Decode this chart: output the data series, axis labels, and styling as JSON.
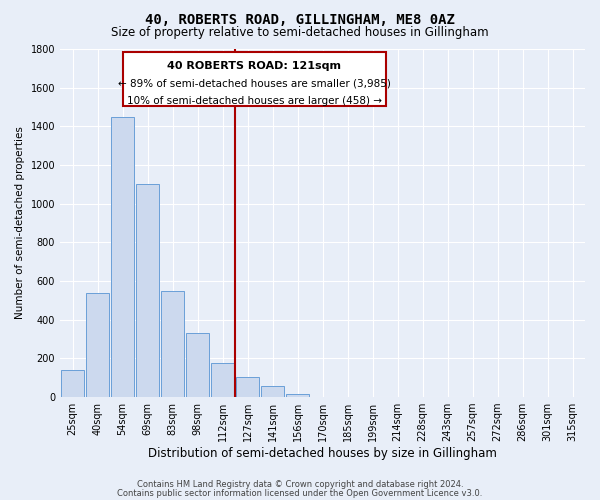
{
  "title": "40, ROBERTS ROAD, GILLINGHAM, ME8 0AZ",
  "subtitle": "Size of property relative to semi-detached houses in Gillingham",
  "xlabel": "Distribution of semi-detached houses by size in Gillingham",
  "ylabel": "Number of semi-detached properties",
  "bar_labels": [
    "25sqm",
    "40sqm",
    "54sqm",
    "69sqm",
    "83sqm",
    "98sqm",
    "112sqm",
    "127sqm",
    "141sqm",
    "156sqm",
    "170sqm",
    "185sqm",
    "199sqm",
    "214sqm",
    "228sqm",
    "243sqm",
    "257sqm",
    "272sqm",
    "286sqm",
    "301sqm",
    "315sqm"
  ],
  "bar_values": [
    140,
    540,
    1450,
    1100,
    550,
    330,
    175,
    105,
    55,
    15,
    0,
    0,
    0,
    0,
    0,
    0,
    0,
    0,
    0,
    0,
    0
  ],
  "bar_color": "#ccd9ee",
  "bar_edge_color": "#6a9fd8",
  "vline_x": 6.5,
  "vline_color": "#aa0000",
  "ylim": [
    0,
    1800
  ],
  "yticks": [
    0,
    200,
    400,
    600,
    800,
    1000,
    1200,
    1400,
    1600,
    1800
  ],
  "annotation_title": "40 ROBERTS ROAD: 121sqm",
  "annotation_line1": "← 89% of semi-detached houses are smaller (3,985)",
  "annotation_line2": "10% of semi-detached houses are larger (458) →",
  "footer1": "Contains HM Land Registry data © Crown copyright and database right 2024.",
  "footer2": "Contains public sector information licensed under the Open Government Licence v3.0.",
  "background_color": "#e8eef8",
  "grid_color": "#ffffff",
  "title_fontsize": 10,
  "subtitle_fontsize": 8.5,
  "xlabel_fontsize": 8.5,
  "ylabel_fontsize": 7.5,
  "tick_fontsize": 7,
  "annotation_title_fontsize": 8,
  "annotation_body_fontsize": 7.5,
  "footer_fontsize": 6
}
